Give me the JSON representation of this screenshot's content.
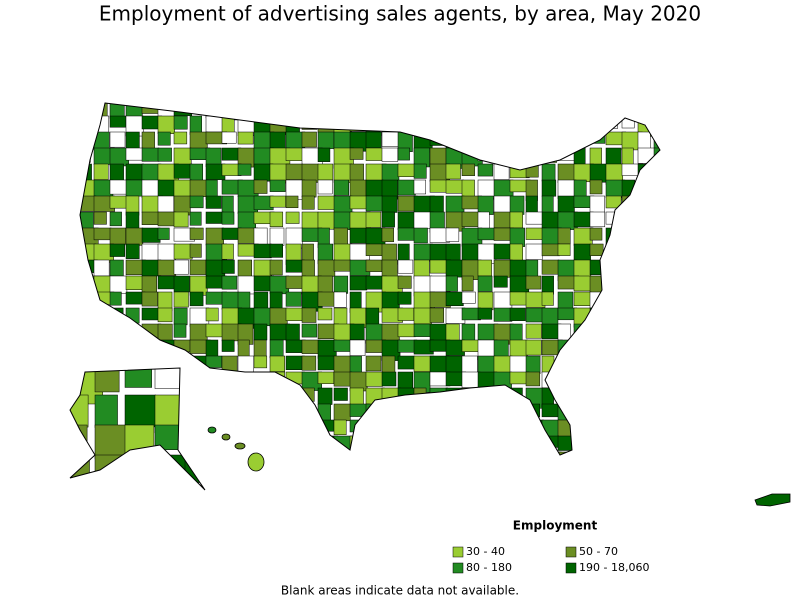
{
  "title": "Employment of advertising sales agents, by area, May 2020",
  "legend": {
    "title": "Employment",
    "items": [
      {
        "label": "30 - 40",
        "color": "#9acd32"
      },
      {
        "label": "50 - 70",
        "color": "#6b8e23"
      },
      {
        "label": "80 - 180",
        "color": "#228b22"
      },
      {
        "label": "190 - 18,060",
        "color": "#006400"
      }
    ]
  },
  "note": "Blank areas indicate data not available."
}
